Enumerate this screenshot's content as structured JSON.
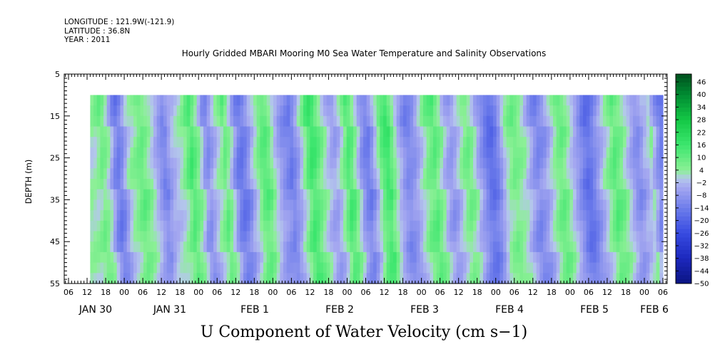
{
  "meta": {
    "longitude": "LONGITUDE : 121.9W(-121.9)",
    "latitude": "LATITUDE : 36.8N",
    "year": "YEAR : 2011"
  },
  "chart_data": {
    "type": "heatmap",
    "title": "Hourly Gridded MBARI Mooring M0 Sea Water Temperature and Salinity Observations",
    "bottom_title": "U Component of Water Velocity (cm s−1)",
    "ylabel": "DEPTH (m)",
    "y_ticks": [
      "5",
      "15",
      "25",
      "35",
      "45",
      "55"
    ],
    "ylim": [
      55,
      5
    ],
    "y_data_range": [
      10,
      55
    ],
    "x_hour_ticks": [
      "06",
      "12",
      "18",
      "00",
      "06",
      "12",
      "18",
      "00",
      "06",
      "12",
      "18",
      "00",
      "06",
      "12",
      "18",
      "00",
      "06",
      "12",
      "18",
      "00",
      "06",
      "12",
      "18",
      "00",
      "06",
      "12",
      "18",
      "00",
      "06",
      "12",
      "18",
      "00",
      "06"
    ],
    "x_date_labels": [
      "JAN 30",
      "JAN 31",
      "FEB  1",
      "FEB  2",
      "FEB  3",
      "FEB  4",
      "FEB  5",
      "FEB  6"
    ],
    "x_data_start": "JAN 30 13:00",
    "x_data_end": "FEB 6 06:00",
    "colorbar_labels": [
      "46",
      "40",
      "34",
      "28",
      "22",
      "16",
      "10",
      "4",
      "−2",
      "−8",
      "−14",
      "−20",
      "−26",
      "−32",
      "−38",
      "−44",
      "−50"
    ],
    "colorbar_range": [
      -50,
      50
    ],
    "hourly_mean_u": [
      3,
      5,
      8,
      6,
      2,
      -5,
      -12,
      -15,
      -12,
      -6,
      0,
      3,
      5,
      8,
      10,
      8,
      5,
      2,
      -2,
      -6,
      -10,
      -12,
      -8,
      -4,
      -2,
      0,
      2,
      5,
      10,
      14,
      10,
      6,
      0,
      -8,
      -10,
      -6,
      -2,
      2,
      5,
      10,
      6,
      0,
      -8,
      -14,
      -16,
      -14,
      -10,
      -4,
      0,
      5,
      10,
      12,
      10,
      5,
      0,
      -4,
      -8,
      -10,
      -12,
      -14,
      -10,
      -6,
      0,
      5,
      12,
      16,
      14,
      10,
      6,
      2,
      -2,
      -5,
      -6,
      -3,
      2,
      8,
      14,
      12,
      6,
      0,
      -8,
      -12,
      -14,
      -10,
      -4,
      2,
      10,
      14,
      16,
      10,
      4,
      -2,
      -6,
      -10,
      -12,
      -10,
      -8,
      -4,
      0,
      4,
      8,
      10,
      12,
      8,
      4,
      -2,
      -6,
      -8,
      -6,
      -2,
      2,
      6,
      8,
      6,
      2,
      -4,
      -8,
      -12,
      -16,
      -18,
      -16,
      -12,
      -6,
      0,
      4,
      6,
      8,
      6,
      4,
      2,
      -2,
      -6,
      -10,
      -12,
      -10,
      -8,
      -4,
      0,
      4,
      8,
      10,
      8,
      4,
      0,
      -4,
      -8,
      -12,
      -16,
      -18,
      -16,
      -12,
      -8,
      -4,
      0,
      4,
      8,
      12,
      10,
      8,
      4,
      0,
      -4,
      -8,
      -10,
      -8,
      -4,
      -2,
      2,
      -4,
      -10,
      -14,
      -16
    ],
    "colors": {
      "strong_negative": "#0a1a8c",
      "negative": "#3b4fd6",
      "weak_negative": "#a3a6ef",
      "weak_positive": "#8ef29a",
      "positive": "#19e35a",
      "strong_positive": "#006d2b"
    }
  }
}
